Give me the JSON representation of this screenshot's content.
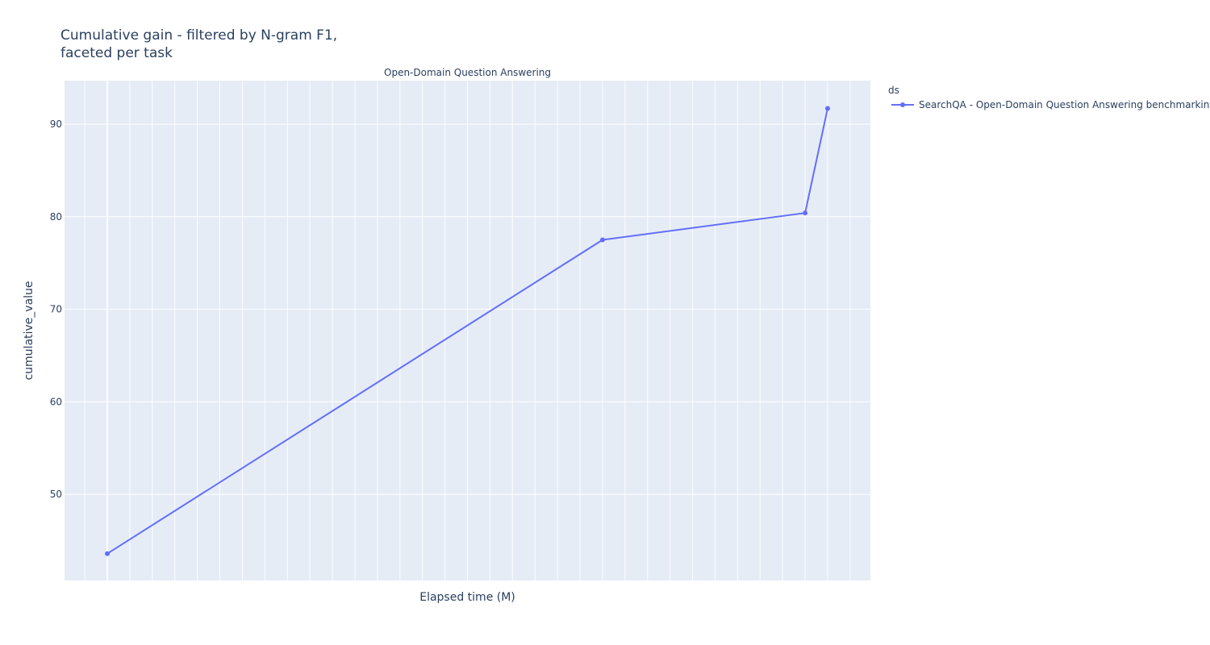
{
  "title_lines": [
    "Cumulative gain - filtered by N-gram F1,",
    "faceted per task"
  ],
  "facet_title": "Open-Domain Question Answering",
  "colors": {
    "plot_bg": "#E5ECF6",
    "grid": "#ffffff",
    "series": "#636efa"
  },
  "chart_data": {
    "type": "line",
    "title": "Cumulative gain - filtered by N-gram F1, faceted per task",
    "xlabel": "Elapsed time (M)",
    "ylabel": "cumulative_value",
    "x_tick_labels": "none",
    "yticks": [
      50,
      60,
      70,
      80,
      90
    ],
    "ylim": [
      40.7,
      94.7
    ],
    "grid": true,
    "legend": {
      "title": "ds",
      "placement": "top-right"
    },
    "series": [
      {
        "name": "SearchQA - Open-Domain Question Answering benchmarking",
        "mode": "lines+markers",
        "x": [
          0,
          22,
          31,
          32
        ],
        "y": [
          43.6,
          77.5,
          80.4,
          91.7
        ]
      }
    ],
    "xlim": [
      -1.9,
      33.9
    ]
  }
}
